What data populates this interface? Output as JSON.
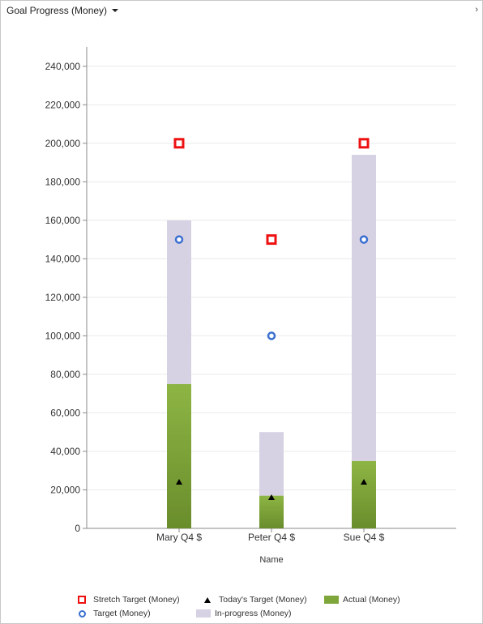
{
  "header": {
    "title": "Goal Progress (Money)",
    "dropdown_icon": "chevron-down-icon",
    "expand_icon": "chevron-right-icon",
    "expand_glyph": "›"
  },
  "chart_data": {
    "type": "bar",
    "categories": [
      "Mary Q4 $",
      "Peter Q4 $",
      "Sue Q4 $"
    ],
    "xlabel": "Name",
    "ylabel": "",
    "ylim": [
      0,
      240000
    ],
    "yticks": [
      0,
      20000,
      40000,
      60000,
      80000,
      100000,
      120000,
      140000,
      160000,
      180000,
      200000,
      220000,
      240000
    ],
    "ytick_labels": [
      "0",
      "20,000",
      "40,000",
      "60,000",
      "80,000",
      "100,000",
      "120,000",
      "140,000",
      "160,000",
      "180,000",
      "200,000",
      "220,000",
      "240,000"
    ],
    "grid": true,
    "legend_position": "bottom",
    "series": [
      {
        "name": "Stretch Target (Money)",
        "kind": "marker-square",
        "color": "#ee1111",
        "values": [
          200000,
          150000,
          200000
        ]
      },
      {
        "name": "Target (Money)",
        "kind": "marker-circle",
        "color": "#3a6fd0",
        "values": [
          150000,
          100000,
          150000
        ]
      },
      {
        "name": "Today's Target (Money)",
        "kind": "marker-triangle",
        "color": "#000000",
        "values": [
          24000,
          16000,
          24000
        ]
      },
      {
        "name": "Actual (Money)",
        "kind": "bar",
        "color": "#7fa63a",
        "values": [
          75000,
          17000,
          35000
        ]
      },
      {
        "name": "In-progress (Money)",
        "kind": "bar-stacked",
        "color": "#d6d1e3",
        "values": [
          85000,
          33000,
          159000
        ]
      }
    ]
  }
}
